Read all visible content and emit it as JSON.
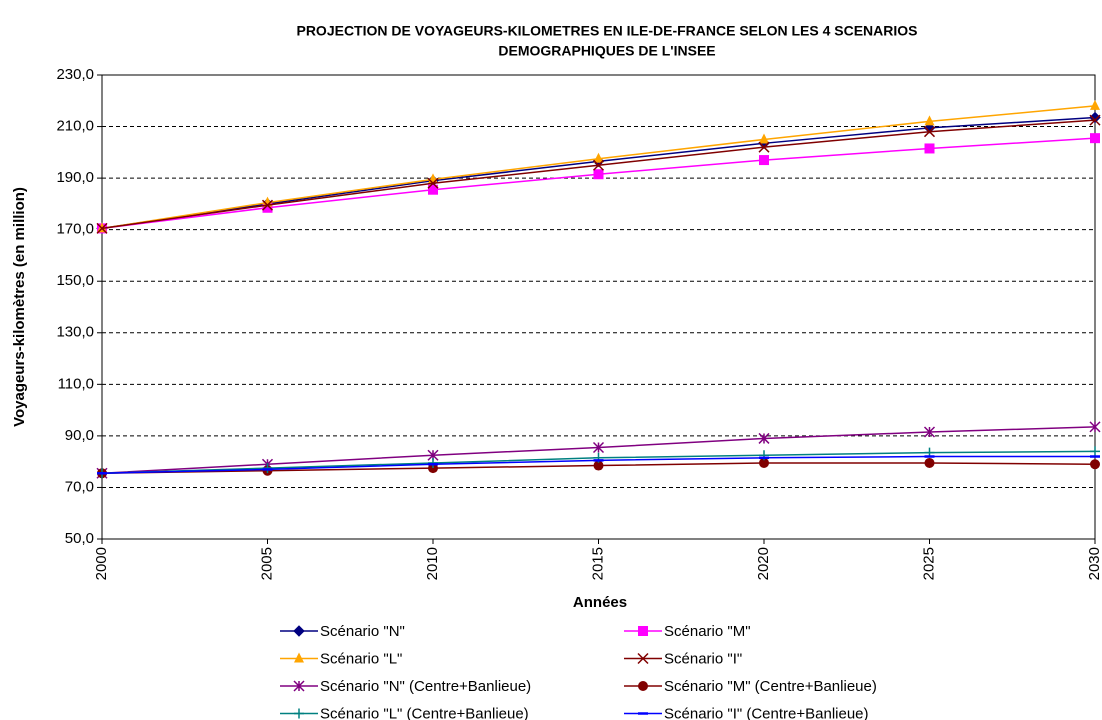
{
  "chart_data": {
    "type": "line",
    "title": [
      "PROJECTION DE VOYAGEURS-KILOMETRES EN ILE-DE-FRANCE SELON LES 4 SCENARIOS",
      "DEMOGRAPHIQUES DE L'INSEE"
    ],
    "x_label": "Années",
    "y_label": "Voyageurs-kilomètres (en million)",
    "x": [
      2000,
      2005,
      2010,
      2015,
      2020,
      2025,
      2030
    ],
    "xlim": [
      2000,
      2030
    ],
    "xticks": [
      2000,
      2005,
      2010,
      2015,
      2020,
      2025,
      2030
    ],
    "ylim": [
      50,
      230
    ],
    "yticks": [
      {
        "value": 50,
        "label": "50,0"
      },
      {
        "value": 70,
        "label": "70,0"
      },
      {
        "value": 90,
        "label": "90,0"
      },
      {
        "value": 110,
        "label": "110,0"
      },
      {
        "value": 130,
        "label": "130,0"
      },
      {
        "value": 150,
        "label": "150,0"
      },
      {
        "value": 170,
        "label": "170,0"
      },
      {
        "value": 190,
        "label": "190,0"
      },
      {
        "value": 210,
        "label": "210,0"
      },
      {
        "value": 230,
        "label": "230,0"
      }
    ],
    "grid": true,
    "series": [
      {
        "name": "Scénario \"N\"",
        "color": "#000080",
        "marker": "diamond",
        "values": [
          170.5,
          180,
          189,
          196.5,
          203.5,
          209.5,
          213.5
        ]
      },
      {
        "name": "Scénario \"M\"",
        "color": "#ff00ff",
        "marker": "square",
        "values": [
          170.5,
          178.5,
          185.5,
          191.5,
          197,
          201.5,
          205.5
        ]
      },
      {
        "name": "Scénario \"L\"",
        "color": "#ffa500",
        "marker": "triangle",
        "values": [
          170.5,
          180.5,
          189.5,
          197.5,
          205,
          212,
          218
        ]
      },
      {
        "name": "Scénario \"I\"",
        "color": "#800000",
        "marker": "x",
        "values": [
          170.5,
          179.5,
          188,
          195,
          202,
          208,
          212.5
        ]
      },
      {
        "name": "Scénario \"N\" (Centre+Banlieue)",
        "color": "#800080",
        "marker": "star",
        "values": [
          75.5,
          79,
          82.5,
          85.5,
          89,
          91.5,
          93.5
        ]
      },
      {
        "name": "Scénario \"M\" (Centre+Banlieue)",
        "color": "#800000",
        "marker": "circle",
        "values": [
          75.5,
          76.5,
          77.5,
          78.5,
          79.5,
          79.5,
          79
        ]
      },
      {
        "name": "Scénario \"L\" (Centre+Banlieue)",
        "color": "#008080",
        "marker": "plus",
        "values": [
          75.5,
          77.5,
          79.5,
          81.5,
          82.5,
          83.5,
          84
        ]
      },
      {
        "name": "Scénario \"I\" (Centre+Banlieue)",
        "color": "#0000ff",
        "marker": "dash",
        "values": [
          75.5,
          77,
          79,
          80.5,
          81.5,
          82,
          82
        ]
      }
    ]
  }
}
